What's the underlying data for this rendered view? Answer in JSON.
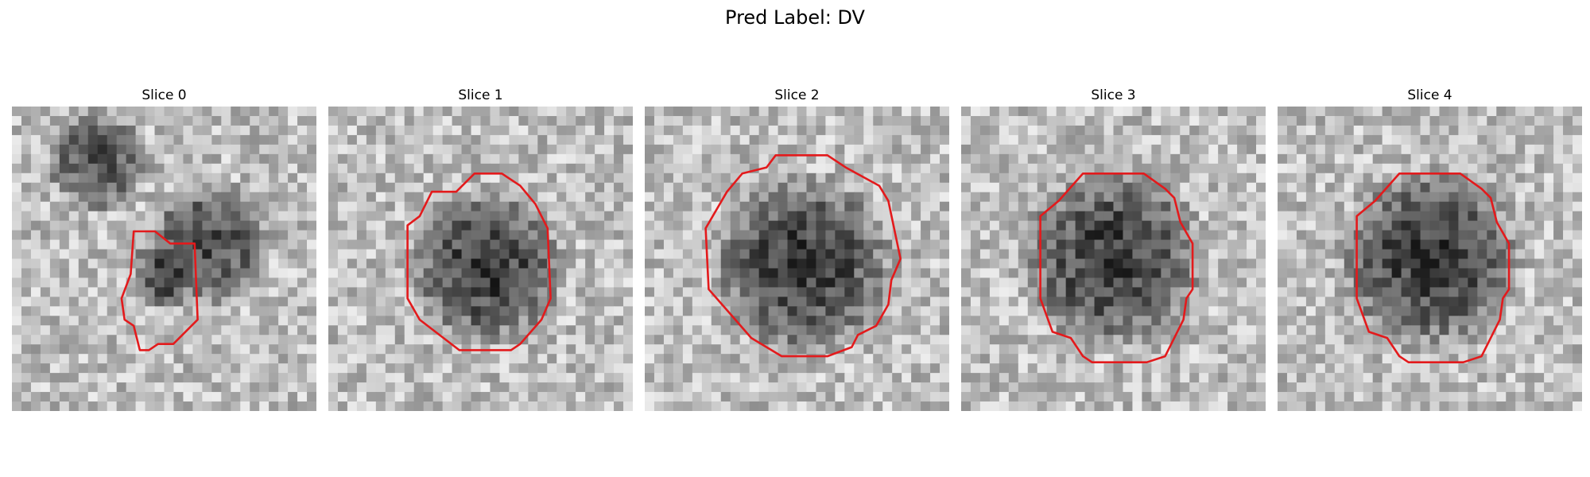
{
  "figure": {
    "title": "Pred Label: DV"
  },
  "panels": [
    {
      "title": "Slice 0",
      "seed": 11,
      "blobs": [
        [
          0.28,
          0.18,
          0.18,
          0.9
        ],
        [
          0.65,
          0.45,
          0.22,
          0.9
        ],
        [
          0.5,
          0.55,
          0.12,
          1.0
        ]
      ],
      "contour": [
        [
          0.4,
          0.41
        ],
        [
          0.47,
          0.41
        ],
        [
          0.52,
          0.45
        ],
        [
          0.6,
          0.45
        ],
        [
          0.61,
          0.7
        ],
        [
          0.53,
          0.78
        ],
        [
          0.48,
          0.78
        ],
        [
          0.45,
          0.8
        ],
        [
          0.42,
          0.8
        ],
        [
          0.4,
          0.72
        ],
        [
          0.37,
          0.7
        ],
        [
          0.36,
          0.63
        ],
        [
          0.39,
          0.55
        ]
      ]
    },
    {
      "title": "Slice 1",
      "seed": 23,
      "blobs": [
        [
          0.52,
          0.53,
          0.27,
          1.0
        ]
      ],
      "contour": [
        [
          0.48,
          0.22
        ],
        [
          0.57,
          0.22
        ],
        [
          0.63,
          0.26
        ],
        [
          0.68,
          0.32
        ],
        [
          0.72,
          0.4
        ],
        [
          0.73,
          0.63
        ],
        [
          0.7,
          0.7
        ],
        [
          0.63,
          0.78
        ],
        [
          0.6,
          0.8
        ],
        [
          0.43,
          0.8
        ],
        [
          0.3,
          0.7
        ],
        [
          0.26,
          0.63
        ],
        [
          0.26,
          0.39
        ],
        [
          0.3,
          0.36
        ],
        [
          0.34,
          0.28
        ],
        [
          0.42,
          0.28
        ]
      ]
    },
    {
      "title": "Slice 2",
      "seed": 37,
      "blobs": [
        [
          0.52,
          0.52,
          0.32,
          1.0
        ]
      ],
      "contour": [
        [
          0.43,
          0.16
        ],
        [
          0.6,
          0.16
        ],
        [
          0.66,
          0.2
        ],
        [
          0.77,
          0.26
        ],
        [
          0.8,
          0.31
        ],
        [
          0.84,
          0.5
        ],
        [
          0.81,
          0.57
        ],
        [
          0.8,
          0.65
        ],
        [
          0.76,
          0.72
        ],
        [
          0.7,
          0.75
        ],
        [
          0.68,
          0.79
        ],
        [
          0.6,
          0.82
        ],
        [
          0.45,
          0.82
        ],
        [
          0.35,
          0.76
        ],
        [
          0.28,
          0.68
        ],
        [
          0.21,
          0.6
        ],
        [
          0.2,
          0.4
        ],
        [
          0.27,
          0.28
        ],
        [
          0.32,
          0.22
        ],
        [
          0.4,
          0.2
        ]
      ]
    },
    {
      "title": "Slice 3",
      "seed": 41,
      "blobs": [
        [
          0.5,
          0.5,
          0.32,
          1.0
        ]
      ],
      "contour": [
        [
          0.4,
          0.22
        ],
        [
          0.6,
          0.22
        ],
        [
          0.67,
          0.27
        ],
        [
          0.7,
          0.3
        ],
        [
          0.72,
          0.38
        ],
        [
          0.76,
          0.45
        ],
        [
          0.76,
          0.6
        ],
        [
          0.74,
          0.63
        ],
        [
          0.73,
          0.7
        ],
        [
          0.67,
          0.82
        ],
        [
          0.61,
          0.84
        ],
        [
          0.43,
          0.84
        ],
        [
          0.4,
          0.82
        ],
        [
          0.36,
          0.76
        ],
        [
          0.3,
          0.74
        ],
        [
          0.26,
          0.63
        ],
        [
          0.26,
          0.36
        ],
        [
          0.32,
          0.31
        ]
      ]
    },
    {
      "title": "Slice 4",
      "seed": 53,
      "blobs": [
        [
          0.5,
          0.5,
          0.32,
          1.0
        ]
      ],
      "contour": [
        [
          0.4,
          0.22
        ],
        [
          0.6,
          0.22
        ],
        [
          0.67,
          0.27
        ],
        [
          0.7,
          0.3
        ],
        [
          0.72,
          0.38
        ],
        [
          0.76,
          0.45
        ],
        [
          0.76,
          0.6
        ],
        [
          0.74,
          0.63
        ],
        [
          0.73,
          0.7
        ],
        [
          0.67,
          0.82
        ],
        [
          0.61,
          0.84
        ],
        [
          0.43,
          0.84
        ],
        [
          0.4,
          0.82
        ],
        [
          0.36,
          0.76
        ],
        [
          0.3,
          0.74
        ],
        [
          0.26,
          0.63
        ],
        [
          0.26,
          0.36
        ],
        [
          0.32,
          0.31
        ]
      ]
    }
  ],
  "colors": {
    "contour": "#e31a1c"
  }
}
